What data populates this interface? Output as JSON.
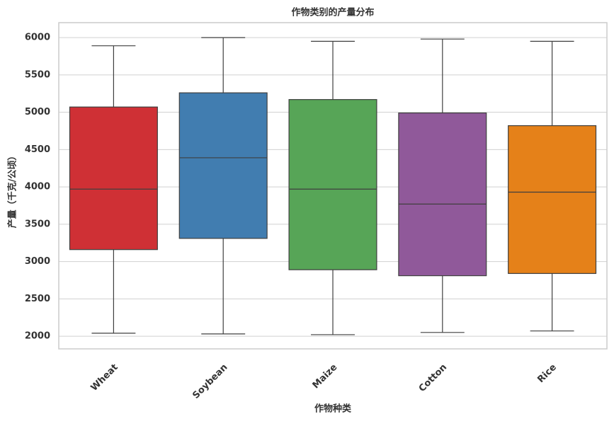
{
  "chart_data": {
    "type": "box",
    "title": "作物类别的产量分布",
    "x_label": "作物种类",
    "y_label": "产量（千克/公顷）",
    "categories": [
      "Wheat",
      "Soybean",
      "Maize",
      "Cotton",
      "Rice"
    ],
    "colors": [
      "#cf3035",
      "#417db0",
      "#57a557",
      "#90599a",
      "#e58119"
    ],
    "stats": [
      {
        "min": 2040,
        "q1": 3160,
        "median": 3970,
        "q3": 5070,
        "max": 5890
      },
      {
        "min": 2030,
        "q1": 3310,
        "median": 4390,
        "q3": 5260,
        "max": 6000
      },
      {
        "min": 2020,
        "q1": 2890,
        "median": 3970,
        "q3": 5170,
        "max": 5950
      },
      {
        "min": 2050,
        "q1": 2810,
        "median": 3770,
        "q3": 4990,
        "max": 5980
      },
      {
        "min": 2070,
        "q1": 2840,
        "median": 3930,
        "q3": 4820,
        "max": 5950
      }
    ],
    "ylim": [
      1830,
      6200
    ],
    "yticks": [
      2000,
      2500,
      3000,
      3500,
      4000,
      4500,
      5000,
      5500,
      6000
    ],
    "grid": true
  }
}
